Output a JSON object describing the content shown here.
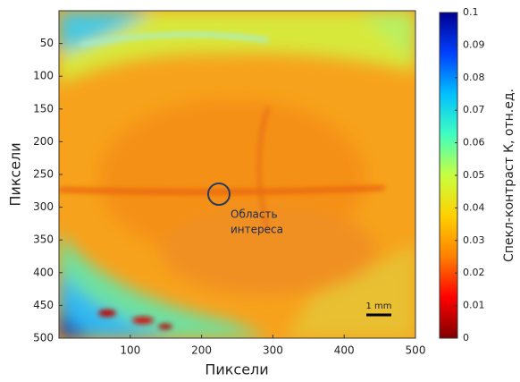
{
  "chart_data": {
    "type": "heatmap",
    "x_label": "Пиксели",
    "y_label": "Пиксели",
    "colorbar_label": "Спекл-контраст К, отн.ед.",
    "xlim": [
      0,
      500
    ],
    "xticks": [
      100,
      200,
      300,
      400,
      500
    ],
    "ylim": [
      0,
      500
    ],
    "yticks": [
      50,
      100,
      150,
      200,
      250,
      300,
      350,
      400,
      450,
      500
    ],
    "clim": [
      0,
      0.1
    ],
    "cticks": [
      0,
      0.01,
      0.02,
      0.03,
      0.04,
      0.05,
      0.06,
      0.07,
      0.08,
      0.09,
      0.1
    ],
    "colormap": [
      "#800000",
      "#ff0000",
      "#ff8000",
      "#ffd000",
      "#c8ff40",
      "#40ffc0",
      "#00c0ff",
      "#0040ff",
      "#000090"
    ],
    "annotations": [
      "Область",
      "интереса",
      "1 mm"
    ]
  }
}
